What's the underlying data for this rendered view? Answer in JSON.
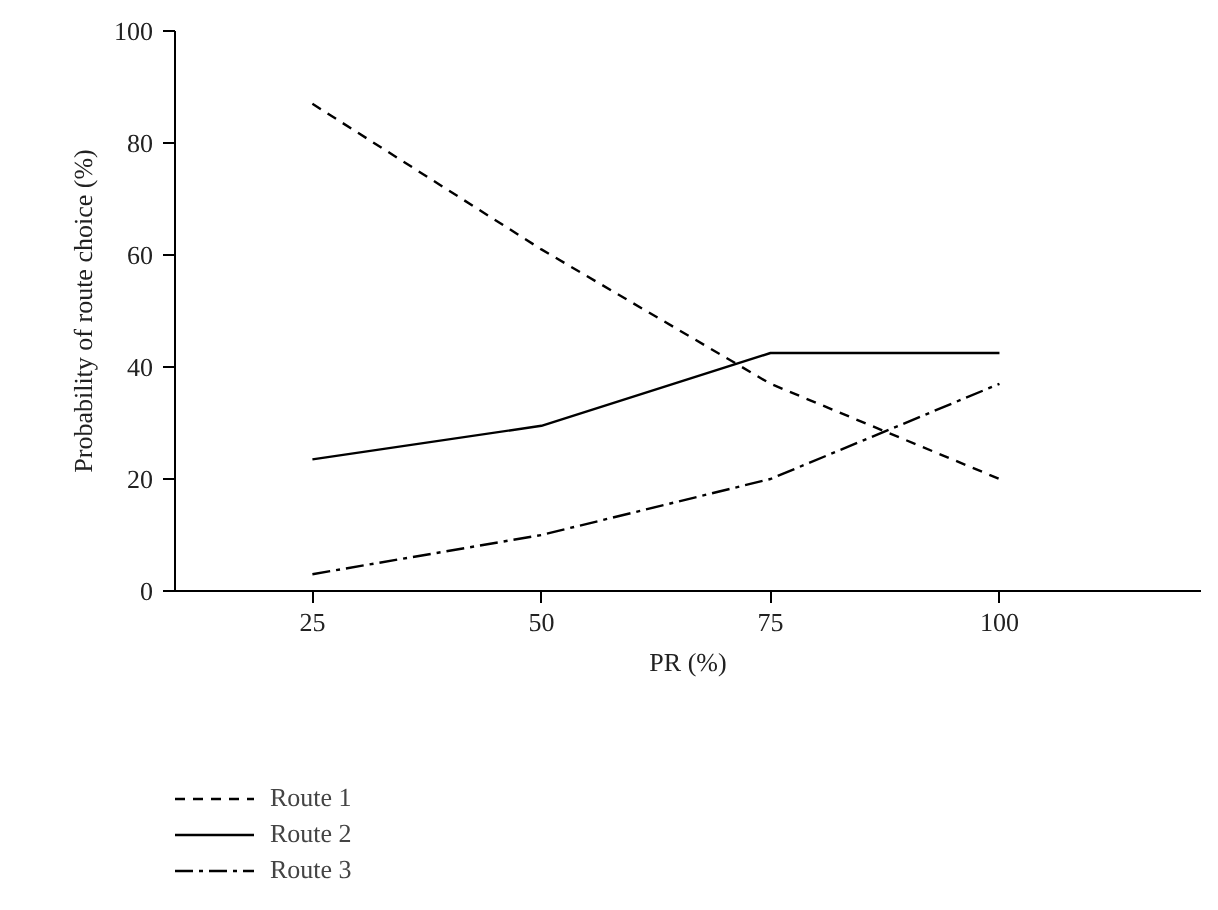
{
  "chart_data": {
    "type": "line",
    "xlabel": "PR (%)",
    "ylabel": "Probability of route choice (%)",
    "x": [
      25,
      50,
      75,
      100
    ],
    "xlim": [
      10,
      122
    ],
    "xticks": [
      25,
      50,
      75,
      100
    ],
    "ylim": [
      0,
      100
    ],
    "yticks": [
      0,
      20,
      40,
      60,
      80,
      100
    ],
    "series": [
      {
        "name": "Route 1",
        "color": "#000000",
        "line_style": "dashed",
        "values": [
          87,
          61,
          37,
          20
        ]
      },
      {
        "name": "Route 2",
        "color": "#000000",
        "line_style": "solid",
        "values": [
          23.5,
          29.5,
          42.5,
          42.5
        ]
      },
      {
        "name": "Route 3",
        "color": "#000000",
        "line_style": "dashdot",
        "values": [
          3,
          10,
          20,
          37
        ]
      }
    ],
    "grid": false,
    "legend": "bottom",
    "marker": "none"
  }
}
